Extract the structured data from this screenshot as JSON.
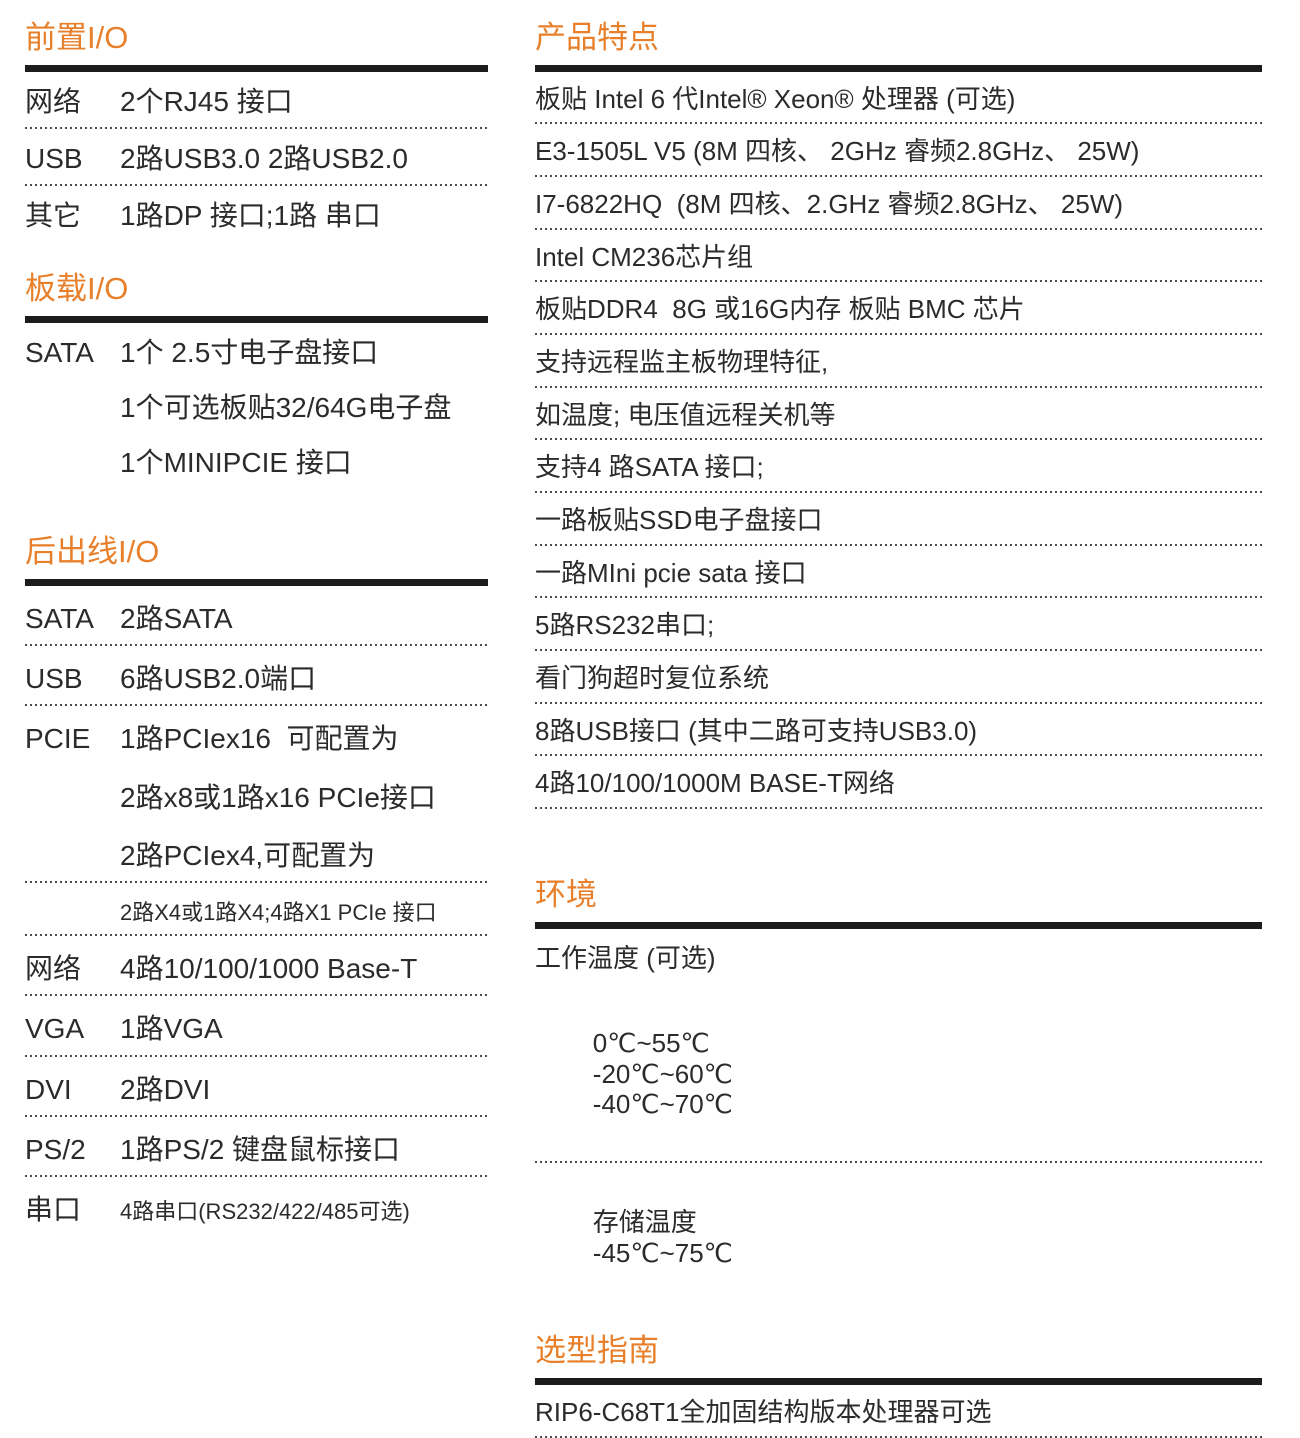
{
  "page": {
    "accent_color": "#e8802b",
    "text_color": "#2b2b2b",
    "rule_color": "#1c1c1c"
  },
  "left": {
    "sections": [
      {
        "title": "前置I/O",
        "rows": [
          {
            "label": "网络",
            "value": "2个RJ45 接口"
          },
          {
            "label": "USB",
            "value": "2路USB3.0 2路USB2.0"
          },
          {
            "label": "其它",
            "value": "1路DP 接口;1路 串口"
          }
        ]
      },
      {
        "title": "板载I/O",
        "rows": [
          {
            "label": "SATA",
            "value": "1个 2.5寸电子盘接口"
          },
          {
            "label": "",
            "value": "1个可选板贴32/64G电子盘"
          },
          {
            "label": "",
            "value": "1个MINIPCIE 接口"
          }
        ]
      },
      {
        "title": "后出线I/O",
        "rows": [
          {
            "label": "SATA",
            "value": "2路SATA"
          },
          {
            "label": "USB",
            "value": "6路USB2.0端口"
          },
          {
            "label": "PCIE",
            "value": "1路PCIex16  可配置为"
          },
          {
            "label": "",
            "value": "2路x8或1路x16 PCIe接口"
          },
          {
            "label": "",
            "value": "2路PCIex4,可配置为"
          },
          {
            "label": "",
            "value": "2路X4或1路X4;4路X1 PCIe 接口"
          },
          {
            "label": "网络",
            "value": "4路10/100/1000 Base-T"
          },
          {
            "label": "VGA",
            "value": "1路VGA"
          },
          {
            "label": "DVI",
            "value": "2路DVI"
          },
          {
            "label": "PS/2",
            "value": "1路PS/2 键盘鼠标接口"
          },
          {
            "label": "串口",
            "value": "4路串口(RS232/422/485可选)"
          }
        ]
      }
    ]
  },
  "right": {
    "features": {
      "title": "产品特点",
      "items": [
        "板贴 Intel 6 代Intel® Xeon® 处理器 (可选)",
        "E3-1505L V5 (8M 四核、 2GHz 睿频2.8GHz、 25W)",
        "I7-6822HQ  (8M 四核、2.GHz 睿频2.8GHz、 25W)",
        "Intel CM236芯片组",
        "板贴DDR4  8G 或16G内存 板贴 BMC 芯片",
        "支持远程监主板物理特征,",
        "如温度; 电压值远程关机等",
        "支持4 路SATA 接口;",
        "一路板贴SSD电子盘接口",
        "一路MIni pcie sata 接口",
        "5路RS232串口;",
        "看门狗超时复位系统",
        "8路USB接口 (其中二路可支持USB3.0)",
        "4路10/100/1000M BASE-T网络"
      ]
    },
    "environment": {
      "title": "环境",
      "work_temp_label": "工作温度 (可选)",
      "work_temps": [
        "0℃~55℃",
        "-20℃~60℃",
        "-40℃~70℃"
      ],
      "storage_temp_label": "存储温度",
      "storage_temp_value": "-45℃~75℃"
    },
    "selection": {
      "title": "选型指南",
      "item": "RIP6-C68T1全加固结构版本处理器可选"
    }
  }
}
